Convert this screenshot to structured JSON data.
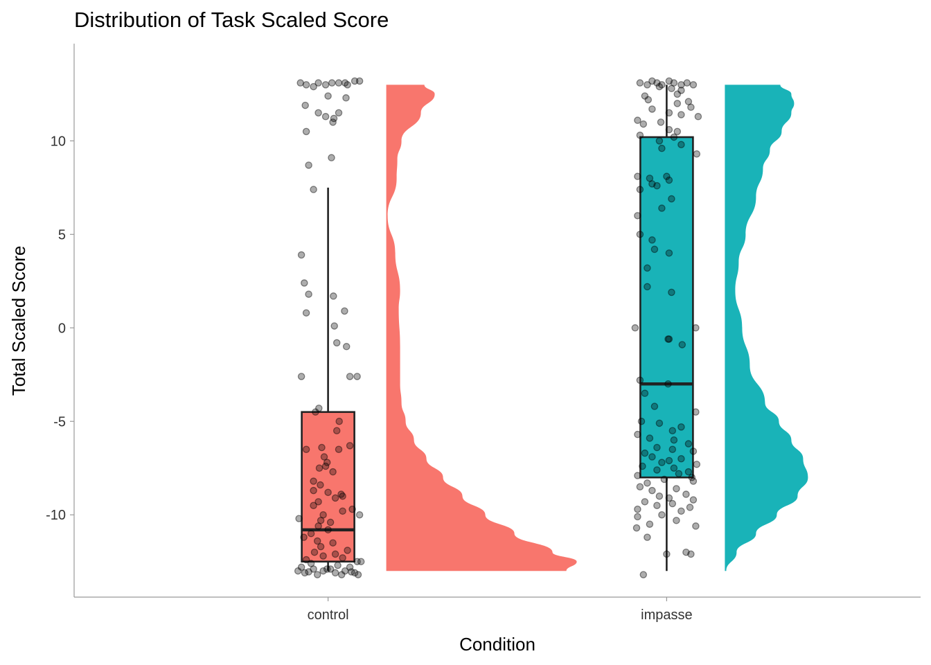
{
  "chart_data": {
    "type": "raincloud",
    "title": "Distribution of Task Scaled Score",
    "xlabel": "Condition",
    "ylabel": "Total Scaled Score",
    "ylim": [
      -14.4,
      15.2
    ],
    "yticks": [
      -10,
      -5,
      0,
      5,
      10
    ],
    "ytick_labels": [
      "-10",
      "-5",
      "0",
      "5",
      "10"
    ],
    "categories": [
      "control",
      "impasse"
    ],
    "grid": false,
    "legend": "none",
    "series": [
      {
        "category": "control",
        "color": "#F8766D",
        "box": {
          "whisker_low": -13,
          "q1": -12.5,
          "median": -10.8,
          "q3": -4.5,
          "whisker_high": 7.5
        },
        "density": [
          [
            13,
            0.55
          ],
          [
            12.5,
            0.7
          ],
          [
            11.5,
            0.5
          ],
          [
            10,
            0.22
          ],
          [
            9,
            0.16
          ],
          [
            8,
            0.15
          ],
          [
            6,
            0.02
          ],
          [
            4,
            0.13
          ],
          [
            2,
            0.2
          ],
          [
            1,
            0.18
          ],
          [
            -1,
            0.2
          ],
          [
            -2,
            0.2
          ],
          [
            -3,
            0.2
          ],
          [
            -4,
            0.22
          ],
          [
            -5,
            0.28
          ],
          [
            -6,
            0.4
          ],
          [
            -7,
            0.58
          ],
          [
            -8,
            0.82
          ],
          [
            -9,
            1.1
          ],
          [
            -10,
            1.43
          ],
          [
            -11,
            1.85
          ],
          [
            -12,
            2.4
          ],
          [
            -12.5,
            2.75
          ],
          [
            -13,
            2.6
          ]
        ],
        "points": [
          [
            13.1,
            -0.57
          ],
          [
            13.0,
            -0.45
          ],
          [
            12.9,
            -0.3
          ],
          [
            13.1,
            -0.2
          ],
          [
            13.0,
            -0.05
          ],
          [
            13.1,
            0.08
          ],
          [
            13.1,
            0.22
          ],
          [
            13.0,
            0.4
          ],
          [
            13.2,
            0.55
          ],
          [
            13.2,
            0.65
          ],
          [
            13.1,
            0.35
          ],
          [
            12.4,
            0.0
          ],
          [
            12.3,
            0.37
          ],
          [
            11.9,
            -0.47
          ],
          [
            11.5,
            -0.2
          ],
          [
            11.5,
            0.22
          ],
          [
            11.2,
            0.12
          ],
          [
            11.0,
            0.1
          ],
          [
            11.3,
            -0.05
          ],
          [
            10.5,
            -0.45
          ],
          [
            9.1,
            0.07
          ],
          [
            8.7,
            -0.4
          ],
          [
            7.4,
            -0.3
          ],
          [
            3.9,
            -0.55
          ],
          [
            2.4,
            -0.49
          ],
          [
            1.8,
            -0.4
          ],
          [
            0.8,
            -0.45
          ],
          [
            1.7,
            0.11
          ],
          [
            0.9,
            0.34
          ],
          [
            0.1,
            0.13
          ],
          [
            -0.8,
            0.18
          ],
          [
            -1.0,
            0.38
          ],
          [
            -2.6,
            -0.55
          ],
          [
            -2.6,
            0.45
          ],
          [
            -2.6,
            0.6
          ],
          [
            -4.3,
            -0.19
          ],
          [
            -4.5,
            -0.26
          ],
          [
            -5.0,
            0.23
          ],
          [
            -5.5,
            0.18
          ],
          [
            -6.3,
            0.45
          ],
          [
            -6.4,
            -0.13
          ],
          [
            -6.5,
            -0.45
          ],
          [
            -6.5,
            0.22
          ],
          [
            -6.9,
            -0.08
          ],
          [
            -7.2,
            -0.02
          ],
          [
            -7.4,
            -0.05
          ],
          [
            -7.5,
            -0.18
          ],
          [
            -7.7,
            0.1
          ],
          [
            -8.2,
            -0.3
          ],
          [
            -8.4,
            -0.16
          ],
          [
            -8.7,
            -0.3
          ],
          [
            -8.8,
            0.0
          ],
          [
            -8.9,
            0.27
          ],
          [
            -9.0,
            0.3
          ],
          [
            -9.1,
            0.15
          ],
          [
            -9.3,
            -0.2
          ],
          [
            -9.5,
            -0.3
          ],
          [
            -9.7,
            0.5
          ],
          [
            -9.8,
            0.3
          ],
          [
            -10.0,
            0.65
          ],
          [
            -10.0,
            -0.1
          ],
          [
            -10.2,
            -0.6
          ],
          [
            -10.3,
            -0.15
          ],
          [
            -10.4,
            0.05
          ],
          [
            -10.6,
            -0.2
          ],
          [
            -10.8,
            0.0
          ],
          [
            -11.0,
            -0.35
          ],
          [
            -11.2,
            -0.5
          ],
          [
            -11.4,
            -0.22
          ],
          [
            -11.5,
            0.1
          ],
          [
            -11.7,
            -0.15
          ],
          [
            -11.9,
            0.4
          ],
          [
            -12.0,
            -0.28
          ],
          [
            -12.1,
            0.15
          ],
          [
            -12.2,
            -0.1
          ],
          [
            -12.3,
            0.3
          ],
          [
            -12.4,
            -0.45
          ],
          [
            -12.5,
            0.6
          ],
          [
            -12.5,
            0.68
          ],
          [
            -12.6,
            -0.35
          ],
          [
            -12.7,
            0.2
          ],
          [
            -12.8,
            -0.55
          ],
          [
            -12.8,
            0.45
          ],
          [
            -12.9,
            -0.3
          ],
          [
            -12.9,
            0.05
          ],
          [
            -13.0,
            -0.62
          ],
          [
            -13.0,
            -0.1
          ],
          [
            -13.0,
            0.35
          ],
          [
            -13.1,
            -0.48
          ],
          [
            -13.1,
            0.15
          ],
          [
            -13.1,
            0.55
          ],
          [
            -13.2,
            -0.22
          ],
          [
            -13.2,
            0.28
          ],
          [
            -13.2,
            0.62
          ],
          [
            -12.9,
            -0.02
          ],
          [
            -13.05,
            -0.4
          ],
          [
            -13.05,
            0.48
          ]
        ]
      },
      {
        "category": "impasse",
        "color": "#19B3B8",
        "box": {
          "whisker_low": -13,
          "q1": -8.0,
          "median": -3.0,
          "q3": 10.2,
          "whisker_high": 13
        },
        "density": [
          [
            13,
            0.8
          ],
          [
            12.5,
            0.96
          ],
          [
            12,
            1.0
          ],
          [
            11.5,
            0.96
          ],
          [
            10.5,
            0.82
          ],
          [
            9.5,
            0.65
          ],
          [
            8.5,
            0.55
          ],
          [
            7,
            0.45
          ],
          [
            5,
            0.3
          ],
          [
            3.5,
            0.2
          ],
          [
            2,
            0.15
          ],
          [
            0,
            0.25
          ],
          [
            -2,
            0.36
          ],
          [
            -4,
            0.58
          ],
          [
            -5,
            0.78
          ],
          [
            -6,
            0.96
          ],
          [
            -7,
            1.13
          ],
          [
            -8,
            1.2
          ],
          [
            -9,
            1.05
          ],
          [
            -10,
            0.75
          ],
          [
            -11,
            0.45
          ],
          [
            -12,
            0.17
          ],
          [
            -13,
            0.02
          ]
        ],
        "points": [
          [
            13.1,
            -0.55
          ],
          [
            13.0,
            -0.4
          ],
          [
            13.2,
            -0.3
          ],
          [
            13.1,
            -0.2
          ],
          [
            13.0,
            -0.1
          ],
          [
            13.2,
            0.05
          ],
          [
            13.1,
            0.15
          ],
          [
            13.0,
            0.3
          ],
          [
            13.1,
            0.42
          ],
          [
            13.0,
            0.55
          ],
          [
            12.9,
            -0.15
          ],
          [
            12.8,
            0.1
          ],
          [
            12.7,
            0.3
          ],
          [
            12.5,
            0.22
          ],
          [
            12.4,
            -0.45
          ],
          [
            12.2,
            -0.38
          ],
          [
            12.1,
            0.45
          ],
          [
            12.0,
            0.22
          ],
          [
            11.8,
            0.5
          ],
          [
            11.7,
            -0.3
          ],
          [
            11.5,
            0.05
          ],
          [
            11.4,
            0.3
          ],
          [
            11.3,
            0.65
          ],
          [
            11.1,
            -0.6
          ],
          [
            11.0,
            -0.12
          ],
          [
            10.9,
            -0.48
          ],
          [
            10.6,
            0.05
          ],
          [
            10.5,
            0.22
          ],
          [
            10.3,
            -0.55
          ],
          [
            10.2,
            0.15
          ],
          [
            10.0,
            -0.15
          ],
          [
            9.8,
            0.3
          ],
          [
            9.6,
            -0.1
          ],
          [
            9.3,
            0.62
          ],
          [
            8.1,
            -0.6
          ],
          [
            8.1,
            0.0
          ],
          [
            8.0,
            -0.35
          ],
          [
            7.9,
            0.05
          ],
          [
            7.7,
            -0.3
          ],
          [
            7.6,
            -0.2
          ],
          [
            7.4,
            -0.55
          ],
          [
            6.9,
            0.1
          ],
          [
            6.4,
            -0.1
          ],
          [
            6.0,
            -0.6
          ],
          [
            5.0,
            -0.55
          ],
          [
            4.7,
            -0.3
          ],
          [
            4.2,
            -0.25
          ],
          [
            4.0,
            0.05
          ],
          [
            3.2,
            -0.4
          ],
          [
            2.2,
            -0.4
          ],
          [
            1.9,
            0.1
          ],
          [
            0.0,
            -0.65
          ],
          [
            0.0,
            0.6
          ],
          [
            -0.6,
            0.05
          ],
          [
            -0.6,
            0.03
          ],
          [
            -0.9,
            0.32
          ],
          [
            -2.8,
            -0.55
          ],
          [
            -3.0,
            0.03
          ],
          [
            -3.5,
            -0.45
          ],
          [
            -4.2,
            -0.25
          ],
          [
            -4.5,
            0.6
          ],
          [
            -5.0,
            -0.52
          ],
          [
            -5.1,
            -0.15
          ],
          [
            -5.3,
            0.3
          ],
          [
            -5.5,
            0.12
          ],
          [
            -5.7,
            -0.6
          ],
          [
            -5.9,
            -0.35
          ],
          [
            -6.0,
            0.15
          ],
          [
            -6.2,
            0.45
          ],
          [
            -6.4,
            -0.2
          ],
          [
            -6.5,
            0.12
          ],
          [
            -6.6,
            0.55
          ],
          [
            -6.7,
            -0.45
          ],
          [
            -6.9,
            -0.3
          ],
          [
            -7.0,
            0.3
          ],
          [
            -7.1,
            0.05
          ],
          [
            -7.2,
            -0.1
          ],
          [
            -7.3,
            0.62
          ],
          [
            -7.4,
            -0.5
          ],
          [
            -7.5,
            0.15
          ],
          [
            -7.6,
            -0.2
          ],
          [
            -7.7,
            0.45
          ],
          [
            -7.8,
            0.25
          ],
          [
            -7.9,
            -0.6
          ],
          [
            -8.0,
            0.52
          ],
          [
            -8.1,
            -0.05
          ],
          [
            -8.2,
            0.55
          ],
          [
            -8.3,
            -0.4
          ],
          [
            -8.5,
            -0.55
          ],
          [
            -8.6,
            0.2
          ],
          [
            -8.7,
            -0.3
          ],
          [
            -8.9,
            0.4
          ],
          [
            -9.0,
            -0.15
          ],
          [
            -9.1,
            0.05
          ],
          [
            -9.2,
            0.55
          ],
          [
            -9.3,
            -0.45
          ],
          [
            -9.4,
            0.12
          ],
          [
            -9.5,
            -0.2
          ],
          [
            -9.6,
            0.48
          ],
          [
            -9.7,
            -0.6
          ],
          [
            -9.8,
            0.3
          ],
          [
            -10.0,
            -0.1
          ],
          [
            -10.1,
            -0.6
          ],
          [
            -10.3,
            0.2
          ],
          [
            -10.5,
            -0.35
          ],
          [
            -10.6,
            0.6
          ],
          [
            -10.7,
            -0.62
          ],
          [
            -11.2,
            -0.4
          ],
          [
            -12.0,
            0.4
          ],
          [
            -12.1,
            0.0
          ],
          [
            -12.1,
            0.5
          ],
          [
            -13.2,
            -0.48
          ]
        ]
      }
    ]
  }
}
